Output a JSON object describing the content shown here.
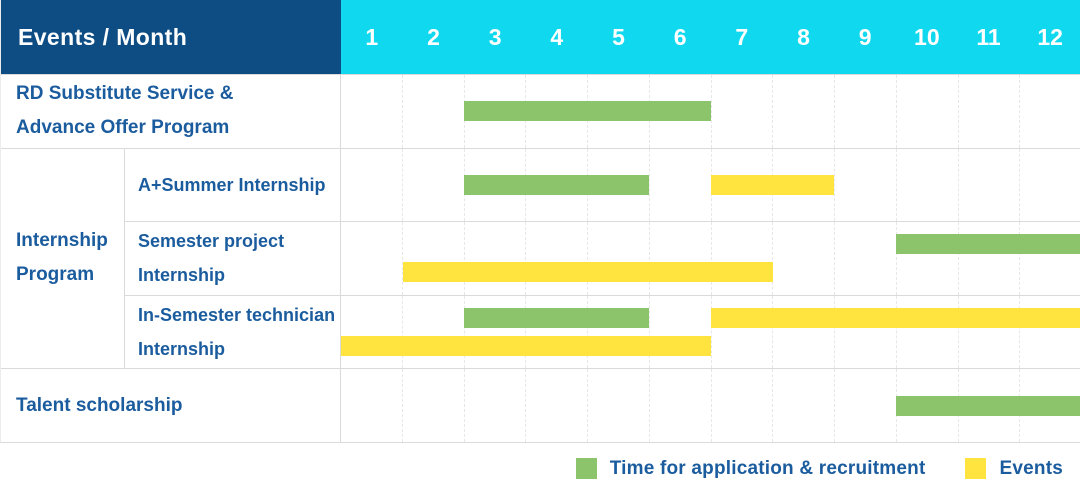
{
  "header": {
    "label": "Events / Month",
    "months": [
      "1",
      "2",
      "3",
      "4",
      "5",
      "6",
      "7",
      "8",
      "9",
      "10",
      "11",
      "12"
    ]
  },
  "colors": {
    "navy": "#0d4d84",
    "cyan": "#10d8ee",
    "green": "#8bc46a",
    "yellow": "#ffe33e",
    "text_blue": "#1b5c9e",
    "grid": "#dadada"
  },
  "chart_data": {
    "type": "gantt",
    "title": "Events / Month",
    "months": [
      1,
      2,
      3,
      4,
      5,
      6,
      7,
      8,
      9,
      10,
      11,
      12
    ],
    "series_legend": {
      "green": "Time for application & recruitment",
      "yellow": "Events"
    },
    "rows": [
      {
        "label": "RD Substitute Service & Advance Offer Program",
        "group": null,
        "bars": [
          {
            "series": "Time for application & recruitment",
            "color": "green",
            "start_month": 3,
            "end_month": 6,
            "lane": "center"
          }
        ]
      },
      {
        "label": "A+Summer Internship",
        "group": "Internship Program",
        "bars": [
          {
            "series": "Time for application & recruitment",
            "color": "green",
            "start_month": 3,
            "end_month": 5,
            "lane": "center"
          },
          {
            "series": "Events",
            "color": "yellow",
            "start_month": 7,
            "end_month": 8,
            "lane": "center"
          }
        ]
      },
      {
        "label": "Semester project Internship",
        "group": "Internship Program",
        "bars": [
          {
            "series": "Time for application & recruitment",
            "color": "green",
            "start_month": 10,
            "end_month": 12,
            "lane": "top"
          },
          {
            "series": "Events",
            "color": "yellow",
            "start_month": 2,
            "end_month": 7,
            "lane": "bottom"
          }
        ]
      },
      {
        "label": "In-Semester technician Internship",
        "group": "Internship Program",
        "bars": [
          {
            "series": "Time for application & recruitment",
            "color": "green",
            "start_month": 3,
            "end_month": 5,
            "lane": "top"
          },
          {
            "series": "Events",
            "color": "yellow",
            "start_month": 7,
            "end_month": 12,
            "lane": "top"
          },
          {
            "series": "Events",
            "color": "yellow",
            "start_month": 1,
            "end_month": 6,
            "lane": "bottom"
          }
        ]
      },
      {
        "label": "Talent scholarship",
        "group": null,
        "bars": [
          {
            "series": "Time for application & recruitment",
            "color": "green",
            "start_month": 10,
            "end_month": 12,
            "lane": "center"
          }
        ]
      }
    ]
  },
  "legend": [
    {
      "color": "green",
      "label": "Time for application & recruitment"
    },
    {
      "color": "yellow",
      "label": "Events"
    }
  ]
}
